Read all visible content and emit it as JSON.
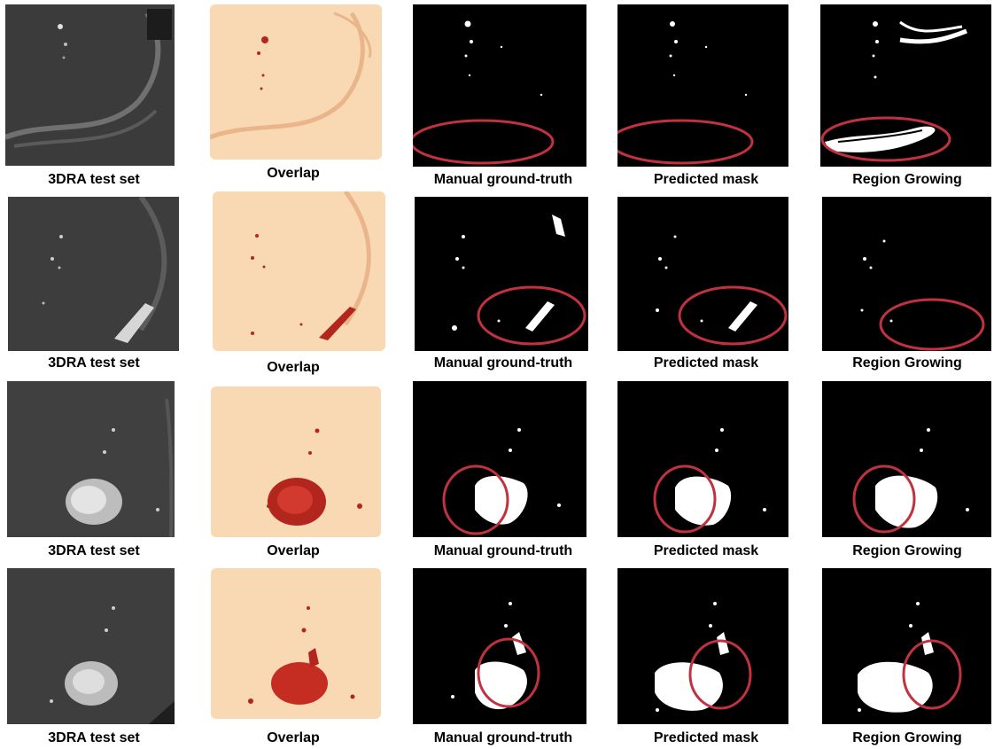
{
  "figure": {
    "rows": [
      {
        "captions": [
          "3DRA test set",
          "Overlap",
          "Manual ground-truth",
          "Predicted mask",
          "Region Growing"
        ]
      },
      {
        "captions": [
          "3DRA test set",
          "Overlap",
          "Manual ground-truth",
          "Predicted mask",
          "Region Growing"
        ]
      },
      {
        "captions": [
          "3DRA test set",
          "Overlap",
          "Manual ground-truth",
          "Predicted mask",
          "Region Growing"
        ]
      },
      {
        "captions": [
          "3DRA test set",
          "Overlap",
          "Manual ground-truth",
          "Predicted mask",
          "Region Growing"
        ]
      }
    ]
  },
  "colors": {
    "highlight_ellipse": "#c0323f",
    "overlap_background": "#f9d9b4",
    "overlap_vessel": "#b3261e",
    "mask_background": "#000000",
    "mask_foreground": "#ffffff",
    "scan_background": "#3a3a3a"
  }
}
